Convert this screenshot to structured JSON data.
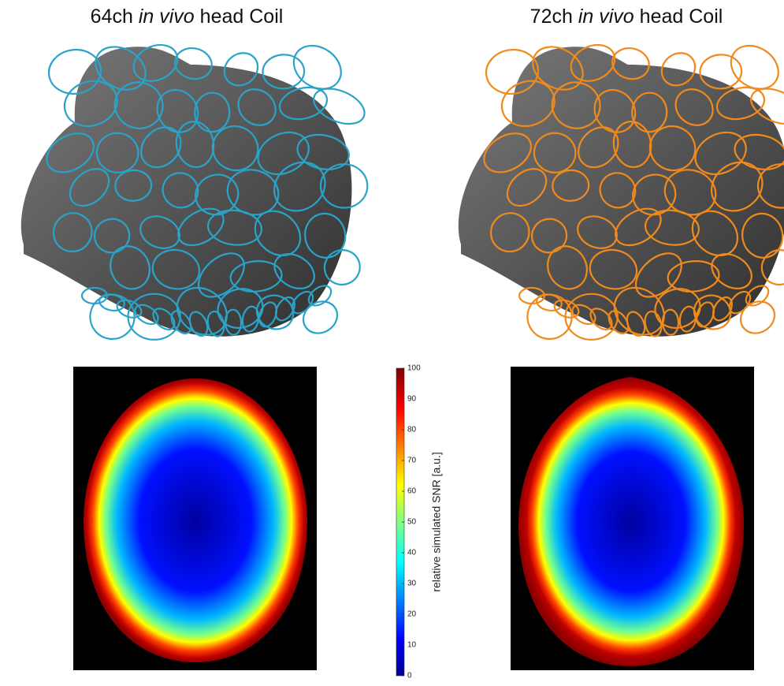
{
  "panels": [
    {
      "title": {
        "prefix": "64ch",
        "italic": "in vivo",
        "suffix": "head Coil"
      },
      "coil_color": "#2aa3c9"
    },
    {
      "title": {
        "prefix": "72ch",
        "italic": "in vivo",
        "suffix": "head Coil"
      },
      "coil_color": "#f08a1c"
    }
  ],
  "colorbar": {
    "label": "relative simulated SNR [a.u.]",
    "lim": [
      0,
      100
    ],
    "ticks": [
      0,
      10,
      20,
      30,
      40,
      50,
      60,
      70,
      80,
      90,
      100
    ]
  }
}
